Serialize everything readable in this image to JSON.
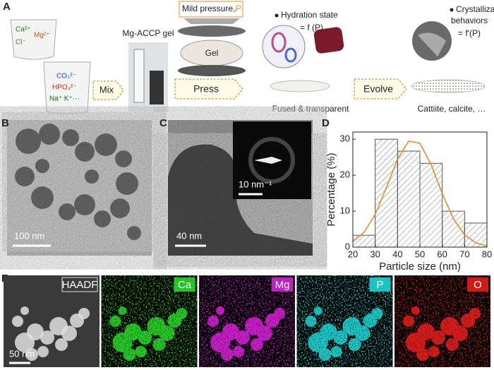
{
  "panel_labels": [
    "A",
    "B",
    "C",
    "D",
    "E"
  ],
  "schematic": {
    "ions_1": [
      "Ca²⁺",
      "Mg²⁺",
      "Cl⁻"
    ],
    "ions_2": [
      "CO₃²⁻",
      "HPO₄²⁻",
      "Na⁺ K⁺···"
    ],
    "step_1": "Mix",
    "gel_label": "Mg-ACCP gel",
    "pressure_label": "Mild pressure,",
    "pressure_symbol": "P",
    "press_gel": "Gel",
    "step_2": "Press",
    "hydration": "Hydration state",
    "hydration_eq": "= f (P)",
    "fused": "Fused & transparent",
    "step_3": "Evolve",
    "crystallization": [
      "Crystallization",
      "behaviors"
    ],
    "crystallization_eq": "= f′(P)",
    "products": "Cattiite, calcite, …"
  },
  "scale_bars": {
    "B": "100 nm",
    "C": "40 nm",
    "C_inset": "10 nm⁻¹",
    "E": "50 nm"
  },
  "eds_maps": [
    {
      "label": "HAADF",
      "color": "#e0e0e0"
    },
    {
      "label": "Ca",
      "color": "#27c227"
    },
    {
      "label": "Mg",
      "color": "#c21fc2"
    },
    {
      "label": "P",
      "color": "#1fc2c2"
    },
    {
      "label": "O",
      "color": "#d11a1a"
    }
  ],
  "chart_data": {
    "type": "histogram",
    "xlabel": "Particle size (nm)",
    "ylabel": "Percentage (%)",
    "bins": [
      20,
      30,
      40,
      50,
      60,
      70,
      80
    ],
    "counts": [
      3.3,
      30,
      26.7,
      23.3,
      10,
      6.7
    ],
    "color": "#555555",
    "fit": {
      "x": [
        20,
        25,
        30,
        35,
        40,
        45,
        50,
        55,
        60,
        65,
        70,
        75,
        80
      ],
      "values": [
        1.5,
        4.1,
        9.1,
        16.5,
        24.5,
        29.5,
        28.9,
        23.0,
        14.9,
        7.9,
        3.4,
        1.2,
        0.3
      ],
      "color": "#e8892a"
    },
    "xlim": [
      20,
      80
    ],
    "ylim": [
      0,
      32
    ],
    "xticks": [
      20,
      30,
      40,
      50,
      60,
      70,
      80
    ],
    "yticks": [
      0,
      10,
      20,
      30
    ]
  }
}
